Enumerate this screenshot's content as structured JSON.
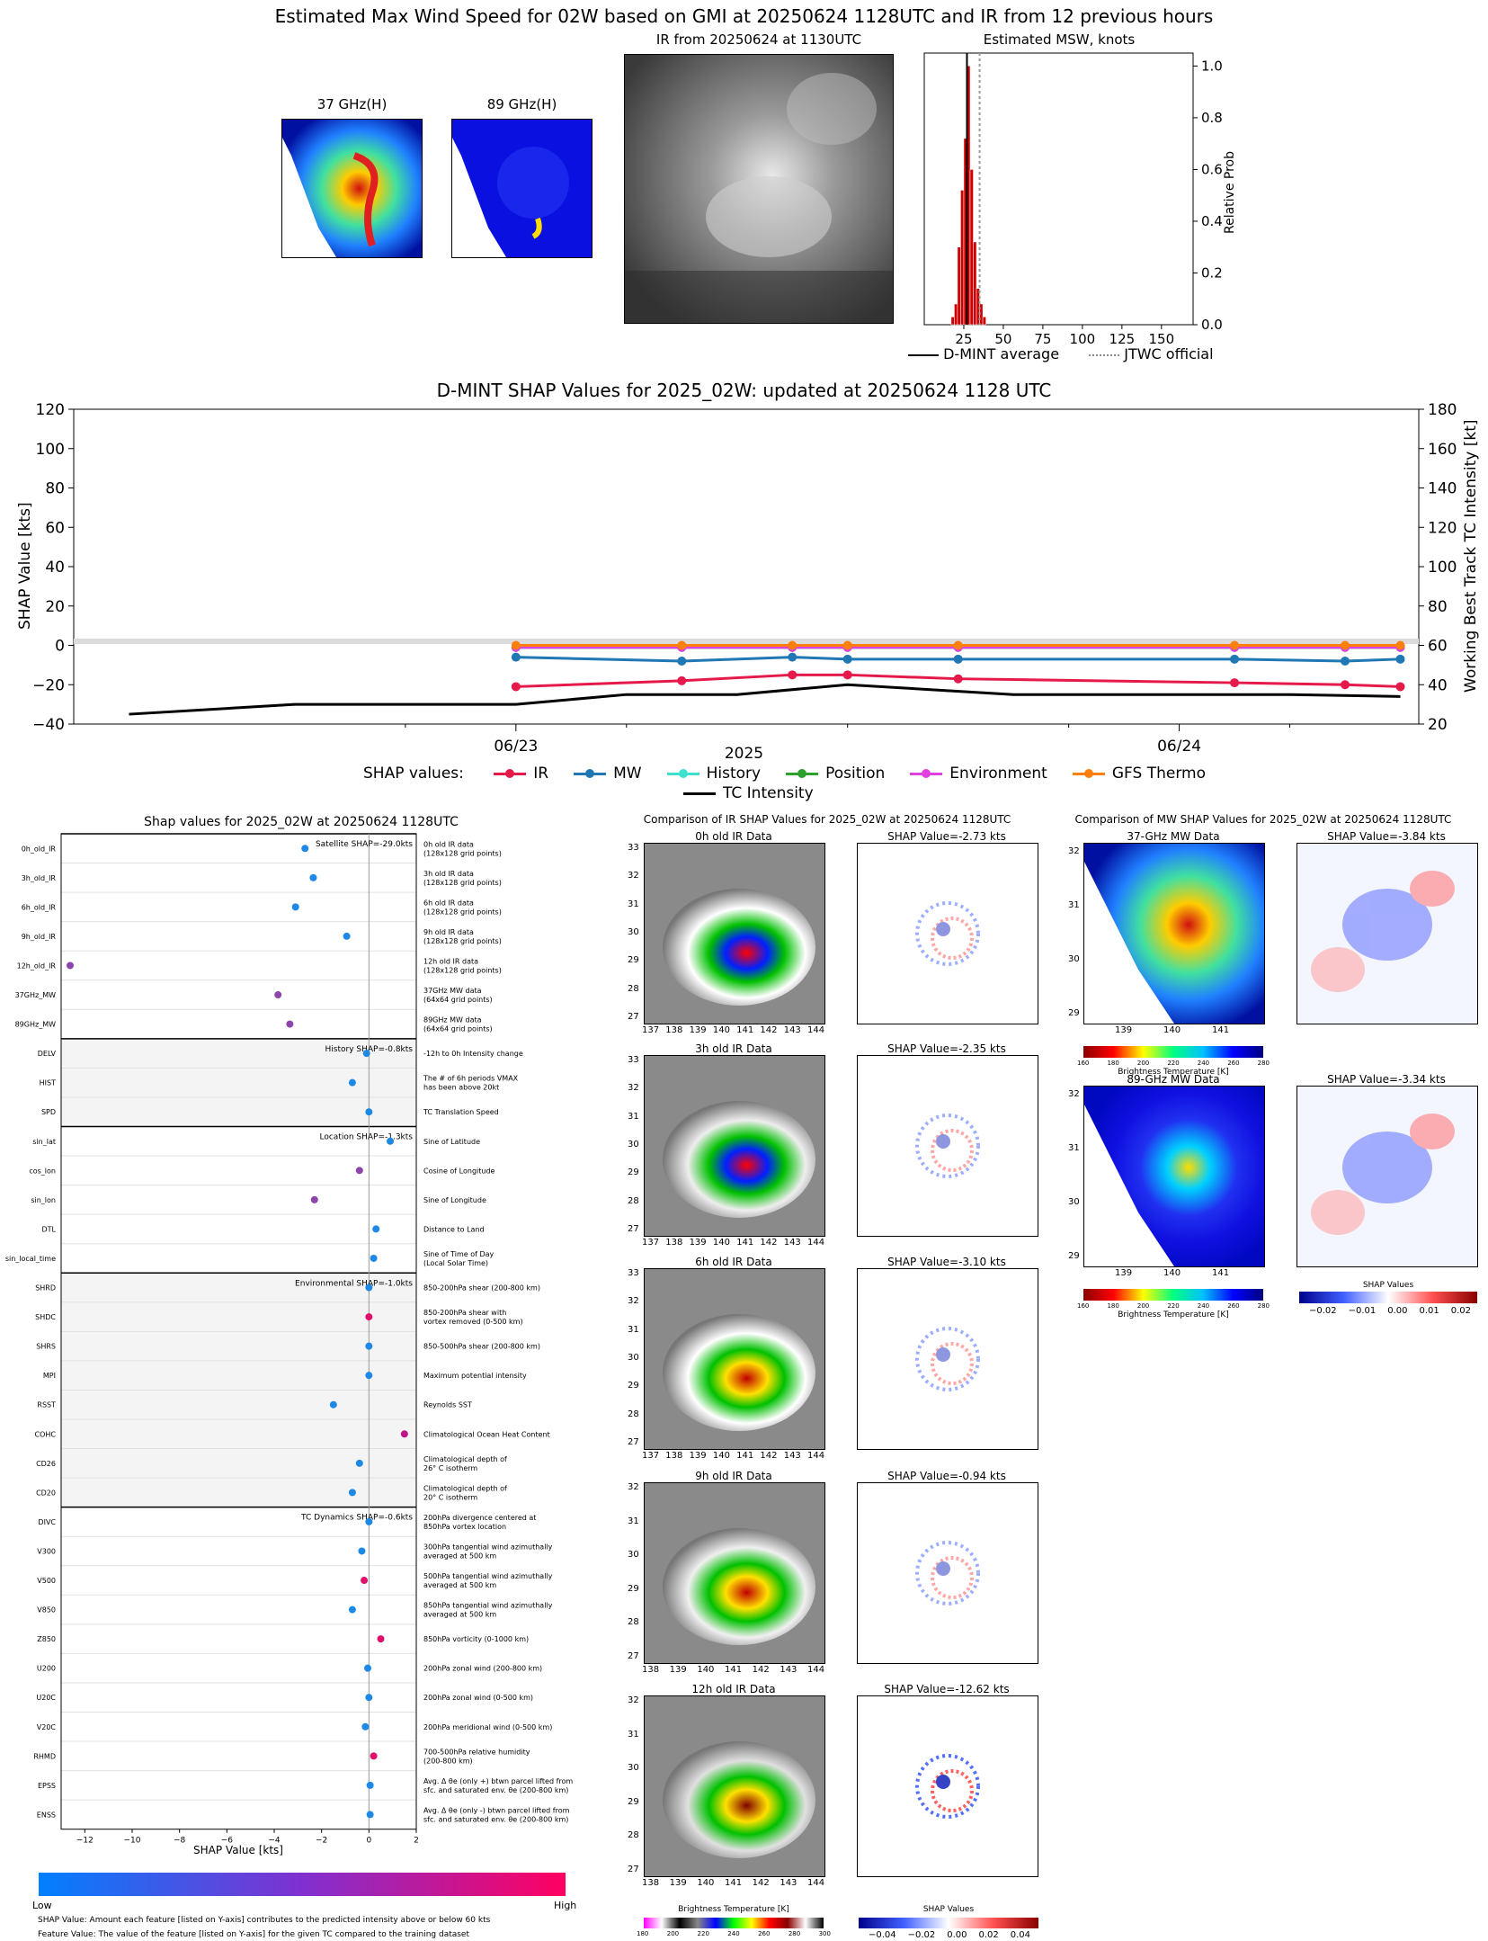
{
  "top": {
    "title": "Estimated Max Wind Speed for 02W based on GMI at 20250624 1128UTC and IR from 12 previous hours",
    "panel37": "37 GHz(H)",
    "panel89": "89 GHz(H)",
    "panelIR": "IR from 20250624 at 1130UTC",
    "msw_title": "Estimated MSW, knots",
    "msw_ylabel": "Relative Prob",
    "msw_xticks": [
      "25",
      "50",
      "75",
      "100",
      "125",
      "150"
    ],
    "msw_yticks": [
      "0.0",
      "0.2",
      "0.4",
      "0.6",
      "0.8",
      "1.0"
    ],
    "legend_avg": "D-MINT average",
    "legend_jtwc": "JTWC official"
  },
  "msw_hist": {
    "type": "bar",
    "x": [
      18,
      20,
      22,
      24,
      26,
      28,
      30,
      32,
      34,
      36,
      38
    ],
    "values": [
      0.03,
      0.08,
      0.3,
      0.52,
      0.72,
      1.0,
      0.6,
      0.32,
      0.14,
      0.08,
      0.03
    ],
    "d_mint_average": 27,
    "jtwc_official": 35,
    "xlim": [
      0,
      170
    ],
    "ylim": [
      0,
      1.05
    ]
  },
  "shap_ts": {
    "title": "D-MINT SHAP Values for 2025_02W: updated at 20250624 1128 UTC",
    "ylabel_left": "SHAP Value [kts]",
    "ylabel_right": "Working Best Track TC Intensity [kt]",
    "xlabel": "2025",
    "xticks": [
      "06/23",
      "06/24"
    ],
    "yticks_left": [
      "120",
      "100",
      "80",
      "60",
      "40",
      "20",
      "0",
      "−20",
      "−40"
    ],
    "yticks_right": [
      "180",
      "160",
      "140",
      "120",
      "100",
      "80",
      "60",
      "40",
      "20"
    ],
    "legend_title": "SHAP values:",
    "legend": [
      "IR",
      "MW",
      "History",
      "Position",
      "Environment",
      "GFS Thermo",
      "TC Intensity"
    ]
  },
  "chart_data": {
    "type": "line",
    "x_hours_labels": [
      "06/23",
      "06/24"
    ],
    "series": [
      {
        "name": "IR",
        "color": "#e6194b",
        "t": [
          12,
          30,
          42,
          48,
          60,
          90,
          102,
          108
        ],
        "values": [
          -21,
          -18,
          -15,
          -15,
          -17,
          -19,
          -20,
          -21
        ]
      },
      {
        "name": "MW",
        "color": "#1f77b4",
        "t": [
          12,
          30,
          42,
          48,
          60,
          90,
          102,
          108
        ],
        "values": [
          -6,
          -8,
          -6,
          -7,
          -7,
          -7,
          -8,
          -7
        ]
      },
      {
        "name": "History",
        "color": "#40e0d0",
        "t": [
          12,
          30,
          42,
          48,
          60,
          90,
          102,
          108
        ],
        "values": [
          -1,
          -1,
          -1,
          -1,
          -1,
          -1,
          -1,
          -1
        ]
      },
      {
        "name": "Position",
        "color": "#2ca02c",
        "t": [
          12,
          30,
          42,
          48,
          60,
          90,
          102,
          108
        ],
        "values": [
          -1,
          -1,
          -1,
          -1,
          -1,
          -1,
          -1,
          -1
        ]
      },
      {
        "name": "Environment",
        "color": "#e040e0",
        "t": [
          12,
          30,
          42,
          48,
          60,
          90,
          102,
          108
        ],
        "values": [
          -1,
          -1,
          -1,
          -1,
          -1,
          -1,
          -1,
          -1
        ]
      },
      {
        "name": "GFS Thermo",
        "color": "#ff7f0e",
        "t": [
          12,
          30,
          42,
          48,
          60,
          90,
          102,
          108
        ],
        "values": [
          0,
          0,
          0,
          0,
          0,
          0,
          0,
          0
        ]
      },
      {
        "name": "TC Intensity",
        "color": "#000000",
        "t": [
          -30,
          -12,
          12,
          24,
          36,
          48,
          66,
          96,
          108
        ],
        "values": [
          25,
          30,
          30,
          35,
          35,
          40,
          35,
          35,
          34
        ]
      }
    ],
    "ylim_left": [
      -40,
      120
    ],
    "ylim_right": [
      20,
      180
    ]
  },
  "shap_bar": {
    "title": "Shap values for 2025_02W at 20250624 1128UTC",
    "xlabel": "SHAP Value [kts]",
    "xticks": [
      "−12",
      "−10",
      "−8",
      "−6",
      "−4",
      "−2",
      "0",
      "2"
    ],
    "xlim": [
      -13,
      2
    ],
    "groups": [
      {
        "label": "Satellite SHAP=-29.0kts",
        "shaded": false,
        "features": [
          {
            "name": "0h_old_IR",
            "desc": [
              "0h old IR data",
              "(128x128 grid points)"
            ],
            "value": -2.7,
            "c": "#1e88e5"
          },
          {
            "name": "3h_old_IR",
            "desc": [
              "3h old IR data",
              "(128x128 grid points)"
            ],
            "value": -2.35,
            "c": "#1e88e5"
          },
          {
            "name": "6h_old_IR",
            "desc": [
              "6h old IR data",
              "(128x128 grid points)"
            ],
            "value": -3.1,
            "c": "#1e88e5"
          },
          {
            "name": "9h_old_IR",
            "desc": [
              "9h old IR data",
              "(128x128 grid points)"
            ],
            "value": -0.94,
            "c": "#1e88e5"
          },
          {
            "name": "12h_old_IR",
            "desc": [
              "12h old IR data",
              "(128x128 grid points)"
            ],
            "value": -12.62,
            "c": "#8e44ad"
          },
          {
            "name": "37GHz_MW",
            "desc": [
              "37GHz MW data",
              "(64x64 grid points)"
            ],
            "value": -3.84,
            "c": "#8e44ad"
          },
          {
            "name": "89GHz_MW",
            "desc": [
              "89GHz MW data",
              "(64x64 grid points)"
            ],
            "value": -3.34,
            "c": "#8e44ad"
          }
        ]
      },
      {
        "label": "History SHAP=-0.8kts",
        "shaded": true,
        "features": [
          {
            "name": "DELV",
            "desc": [
              "-12h to 0h Intensity change"
            ],
            "value": -0.1,
            "c": "#1e88e5"
          },
          {
            "name": "HIST",
            "desc": [
              "The # of 6h periods VMAX",
              "has been above 20kt"
            ],
            "value": -0.7,
            "c": "#1e88e5"
          },
          {
            "name": "SPD",
            "desc": [
              "TC Translation Speed"
            ],
            "value": 0.0,
            "c": "#1e88e5"
          }
        ]
      },
      {
        "label": "Location SHAP=-1.3kts",
        "shaded": false,
        "features": [
          {
            "name": "sin_lat",
            "desc": [
              "Sine of Latitude"
            ],
            "value": 0.9,
            "c": "#1e88e5"
          },
          {
            "name": "cos_lon",
            "desc": [
              "Cosine of Longitude"
            ],
            "value": -0.4,
            "c": "#8e44ad"
          },
          {
            "name": "sin_lon",
            "desc": [
              "Sine of Longitude"
            ],
            "value": -2.3,
            "c": "#8e44ad"
          },
          {
            "name": "DTL",
            "desc": [
              "Distance to Land"
            ],
            "value": 0.3,
            "c": "#1e88e5"
          },
          {
            "name": "sin_local_time",
            "desc": [
              "Sine of Time of Day",
              "(Local Solar Time)"
            ],
            "value": 0.2,
            "c": "#1e88e5"
          }
        ]
      },
      {
        "label": "Environmental SHAP=-1.0kts",
        "shaded": true,
        "features": [
          {
            "name": "SHRD",
            "desc": [
              "850-200hPa shear (200-800 km)"
            ],
            "value": 0.0,
            "c": "#1e88e5"
          },
          {
            "name": "SHDC",
            "desc": [
              "850-200hPa shear with",
              "vortex removed (0-500 km)"
            ],
            "value": 0.0,
            "c": "#e0106a"
          },
          {
            "name": "SHRS",
            "desc": [
              "850-500hPa shear (200-800 km)"
            ],
            "value": 0.0,
            "c": "#1e88e5"
          },
          {
            "name": "MPI",
            "desc": [
              "Maximum potential intensity"
            ],
            "value": 0.0,
            "c": "#1e88e5"
          },
          {
            "name": "RSST",
            "desc": [
              "Reynolds SST"
            ],
            "value": -1.5,
            "c": "#1e88e5"
          },
          {
            "name": "COHC",
            "desc": [
              "Climatological Ocean Heat Content"
            ],
            "value": 1.5,
            "c": "#c0158a"
          },
          {
            "name": "CD26",
            "desc": [
              "Climatological depth of",
              "26° C isotherm"
            ],
            "value": -0.4,
            "c": "#1e88e5"
          },
          {
            "name": "CD20",
            "desc": [
              "Climatological depth of",
              "20° C isotherm"
            ],
            "value": -0.7,
            "c": "#1e88e5"
          }
        ]
      },
      {
        "label": "TC Dynamics SHAP=-0.6kts",
        "shaded": false,
        "features": [
          {
            "name": "DIVC",
            "desc": [
              "200hPa divergence centered at",
              "850hPa vortex location"
            ],
            "value": 0.0,
            "c": "#1e88e5"
          },
          {
            "name": "V300",
            "desc": [
              "300hPa tangential wind azimuthally",
              "averaged at 500 km"
            ],
            "value": -0.3,
            "c": "#1e88e5"
          },
          {
            "name": "V500",
            "desc": [
              "500hPa tangential wind azimuthally",
              "averaged at 500 km"
            ],
            "value": -0.2,
            "c": "#e0106a"
          },
          {
            "name": "V850",
            "desc": [
              "850hPa tangential wind azimuthally",
              "averaged at 500 km"
            ],
            "value": -0.7,
            "c": "#1e88e5"
          },
          {
            "name": "Z850",
            "desc": [
              "850hPa vorticity (0-1000 km)"
            ],
            "value": 0.5,
            "c": "#e0106a"
          },
          {
            "name": "U200",
            "desc": [
              "200hPa zonal wind (200-800 km)"
            ],
            "value": -0.05,
            "c": "#1e88e5"
          },
          {
            "name": "U20C",
            "desc": [
              "200hPa zonal wind (0-500 km)"
            ],
            "value": 0.0,
            "c": "#1e88e5"
          },
          {
            "name": "V20C",
            "desc": [
              "200hPa meridional wind (0-500 km)"
            ],
            "value": -0.15,
            "c": "#1e88e5"
          },
          {
            "name": "RHMD",
            "desc": [
              "700-500hPa relative humidity",
              "(200-800 km)"
            ],
            "value": 0.2,
            "c": "#e0106a"
          },
          {
            "name": "EPSS",
            "desc": [
              "Avg. Δ θe (only +) btwn parcel lifted from",
              "sfc. and saturated env. θe (200-800 km)"
            ],
            "value": 0.05,
            "c": "#1e88e5"
          },
          {
            "name": "ENSS",
            "desc": [
              "Avg. Δ θe (only -) btwn parcel lifted from",
              "sfc. and saturated env. θe (200-800 km)"
            ],
            "value": 0.05,
            "c": "#1e88e5"
          }
        ]
      }
    ],
    "cbar_low": "Low",
    "cbar_high": "High",
    "note1": "SHAP Value: Amount each feature [listed on Y-axis] contributes to the predicted intensity above or below 60 kts",
    "note2": "Feature Value: The value of the feature [listed on Y-axis] for the given TC compared to the training dataset"
  },
  "ir_cmp": {
    "title": "Comparison of IR SHAP Values for 2025_02W at 20250624 1128UTC",
    "rows": [
      {
        "label": "0h old IR Data",
        "shap": "SHAP Value=-2.73 kts",
        "yt": [
          "33",
          "32",
          "31",
          "30",
          "29",
          "28",
          "27"
        ],
        "xt": [
          "137",
          "138",
          "139",
          "140",
          "141",
          "142",
          "143",
          "144"
        ]
      },
      {
        "label": "3h old IR Data",
        "shap": "SHAP Value=-2.35 kts",
        "yt": [
          "33",
          "32",
          "31",
          "30",
          "29",
          "28",
          "27"
        ],
        "xt": [
          "137",
          "138",
          "139",
          "140",
          "141",
          "142",
          "143",
          "144"
        ]
      },
      {
        "label": "6h old IR Data",
        "shap": "SHAP Value=-3.10 kts",
        "yt": [
          "33",
          "32",
          "31",
          "30",
          "29",
          "28",
          "27"
        ],
        "xt": [
          "137",
          "138",
          "139",
          "140",
          "141",
          "142",
          "143",
          "144"
        ]
      },
      {
        "label": "9h old IR Data",
        "shap": "SHAP Value=-0.94 kts",
        "yt": [
          "32",
          "31",
          "30",
          "29",
          "28",
          "27"
        ],
        "xt": [
          "138",
          "139",
          "140",
          "141",
          "142",
          "143",
          "144"
        ]
      },
      {
        "label": "12h old IR Data",
        "shap": "SHAP Value=-12.62 kts",
        "yt": [
          "32",
          "31",
          "30",
          "29",
          "28",
          "27"
        ],
        "xt": [
          "138",
          "139",
          "140",
          "141",
          "142",
          "143",
          "144"
        ]
      }
    ],
    "bt_label": "Brightness Temperature [K]",
    "bt_ticks": [
      "180",
      "200",
      "220",
      "240",
      "260",
      "280",
      "300"
    ],
    "sv_label": "SHAP Values",
    "sv_ticks": [
      "−0.04",
      "−0.02",
      "0.00",
      "0.02",
      "0.04"
    ]
  },
  "mw_cmp": {
    "title": "Comparison of MW SHAP Values for 2025_02W at 20250624 1128UTC",
    "rows": [
      {
        "label": "37-GHz MW Data",
        "shap": "SHAP Value=-3.84 kts"
      },
      {
        "label": "89-GHz MW Data",
        "shap": "SHAP Value=-3.34 kts"
      }
    ],
    "yt": [
      "32",
      "31",
      "30",
      "29"
    ],
    "xt": [
      "139",
      "140",
      "141"
    ],
    "bt_label": "Brightness Temperature [K]",
    "bt_ticks": [
      "160",
      "180",
      "200",
      "220",
      "240",
      "260",
      "280"
    ],
    "sv_label": "SHAP Values",
    "sv_ticks": [
      "−0.02",
      "−0.01",
      "0.00",
      "0.01",
      "0.02"
    ]
  },
  "colors": {
    "ir": "#e6194b",
    "mw": "#1f77b4",
    "history": "#40e0d0",
    "position": "#2ca02c",
    "environment": "#e040e0",
    "gfs": "#ff7f0e",
    "bar": "#cc0000"
  }
}
